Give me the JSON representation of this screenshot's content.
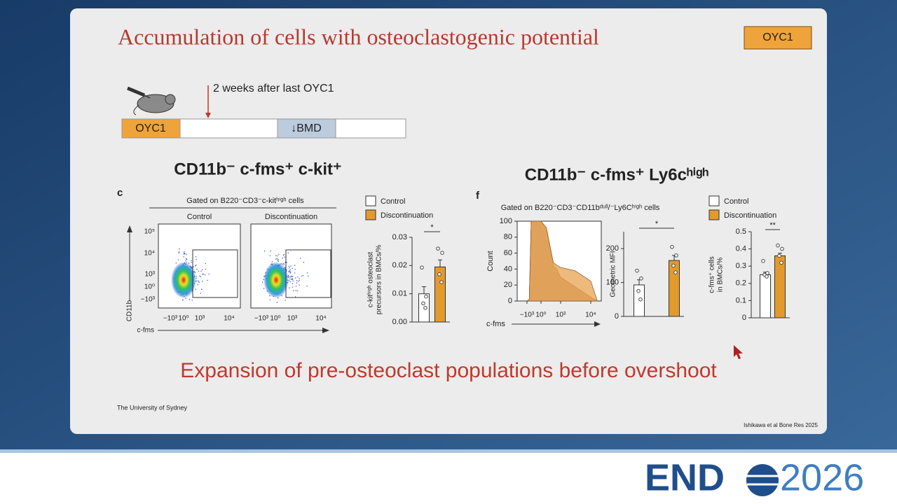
{
  "slide": {
    "title": "Accumulation of cells with osteoclastogenic potential",
    "badge": "OYC1",
    "timeline": {
      "treatment": "OYC1",
      "annotation": "2 weeks after last OYC1",
      "readout": "↓BMD"
    },
    "caption": "Expansion of pre-osteoclast populations before overshoot",
    "affiliation": "The University of Sydney",
    "citation": "Ishikawa et al Bone Res 2025"
  },
  "panels": [
    {
      "letter": "c",
      "heading": "CD11b⁻ c-fms⁺ c-kit⁺",
      "gating": "Gated on B220⁻CD3⁻c-kitʰⁱᵍʰ cells",
      "flow": {
        "groups": [
          "Control",
          "Discontinuation"
        ],
        "y_label": "CD11b",
        "x_label": "c-fms",
        "y_tick_labels": [
          "10⁵",
          "10⁴",
          "10³",
          "10⁰",
          "−10³"
        ],
        "x_tick_labels": [
          "−10³",
          "10⁰",
          "10³",
          "10⁴"
        ]
      }
    },
    {
      "letter": "f",
      "heading": "CD11b⁻ c-fms⁺ Ly6cʰⁱᵍʰ",
      "gating": "Gated on B220⁻CD3⁻CD11bᵈᵘˡˡ/⁻Ly6Cʰⁱᵍʰ cells"
    }
  ],
  "chart_data": [
    {
      "type": "bar",
      "y_label": [
        "c-kitʰⁱᵍʰ osteoclast",
        "precursors in BMCs/%"
      ],
      "ylim": [
        0,
        0.03
      ],
      "yticks": [
        {
          "value": 0,
          "label": "0.00"
        },
        0.01,
        0.02,
        0.03
      ],
      "significance": "*",
      "series": [
        {
          "name": "Control",
          "color": "#ffffff",
          "values": [
            0.01
          ],
          "errors": [
            0.0025
          ],
          "points": [
            0.0193,
            0.009,
            0.0066,
            0.005
          ]
        },
        {
          "name": "Discontinuation",
          "color": "#e39a2d",
          "values": [
            0.0195
          ],
          "errors": [
            0.0025
          ],
          "points": [
            0.026,
            0.0245,
            0.0169,
            0.0141
          ]
        }
      ]
    },
    {
      "type": "area",
      "x_label": "c-fms",
      "y_label": "Count",
      "ylim": [
        0,
        100
      ],
      "yticks": [
        0,
        20,
        40,
        60,
        80,
        100
      ],
      "xlim": [
        -3000,
        30000
      ],
      "xticks": [
        {
          "value": -1000,
          "label": "−10³"
        },
        {
          "value": 1,
          "label": "10⁰"
        },
        {
          "value": 1000,
          "label": "10³"
        },
        {
          "value": 10000,
          "label": "10⁴"
        }
      ],
      "x": [
        -1000,
        -300,
        -100,
        1,
        10,
        100,
        300,
        1000,
        3000,
        10000,
        20000
      ],
      "series": [
        {
          "color": "#b57a4a",
          "values": [
            0,
            2,
            100,
            100,
            90,
            45,
            40,
            30,
            18,
            5,
            0
          ]
        },
        {
          "color": "#e8a350",
          "values": [
            0,
            2,
            100,
            100,
            92,
            48,
            45,
            42,
            38,
            25,
            0
          ]
        }
      ]
    },
    {
      "type": "bar",
      "y_label": [
        "Geometric MFI"
      ],
      "ylim": [
        0,
        250
      ],
      "yticks": [
        0,
        100,
        200
      ],
      "significance": "*",
      "series": [
        {
          "name": "Control",
          "color": "#ffffff",
          "values": [
            93
          ],
          "errors": [
            15
          ],
          "points": [
            135,
            112,
            75,
            50
          ]
        },
        {
          "name": "Discontinuation",
          "color": "#e39a2d",
          "values": [
            165
          ],
          "errors": [
            15
          ],
          "points": [
            205,
            180,
            150,
            130
          ]
        }
      ]
    },
    {
      "type": "bar",
      "y_label": [
        "c-fms⁺ cells",
        "in BMCs/%"
      ],
      "ylim": [
        0,
        0.5
      ],
      "yticks": [
        0,
        0.1,
        0.2,
        0.3,
        0.4,
        0.5
      ],
      "significance": "**",
      "series": [
        {
          "color": "#ffffff",
          "values": [
            0.25
          ],
          "errors": [
            0.015
          ],
          "points": [
            0.33,
            0.26,
            0.25,
            0.24
          ]
        },
        {
          "color": "#e39a2d",
          "values": [
            0.36
          ],
          "errors": [
            0.015
          ],
          "points": [
            0.42,
            0.4,
            0.36,
            0.32
          ]
        }
      ]
    }
  ],
  "footer": {
    "logo_left": "END",
    "logo_right": "2026"
  }
}
